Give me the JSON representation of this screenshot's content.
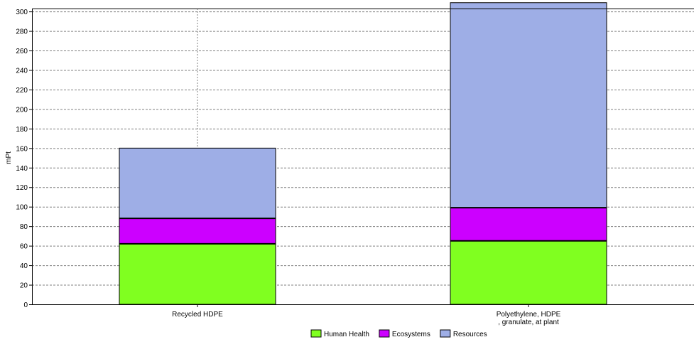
{
  "chart_data": {
    "type": "bar",
    "stacked": true,
    "categories": [
      "Recycled HDPE",
      "Polyethylene, HDPE\n, granulate, at plant"
    ],
    "series": [
      {
        "name": "Human Health",
        "values": [
          62,
          65
        ],
        "color": "#80ff20"
      },
      {
        "name": "Ecosystems",
        "values": [
          26,
          34
        ],
        "color": "#cc00ff"
      },
      {
        "name": "Resources",
        "values": [
          72,
          210
        ],
        "color": "#9eaee6"
      }
    ],
    "ylabel": "mPt",
    "ylim": [
      0,
      300
    ],
    "yticks": [
      0,
      20,
      40,
      60,
      80,
      100,
      120,
      140,
      160,
      180,
      200,
      220,
      240,
      260,
      280,
      300
    ],
    "grid": true,
    "legend": "bottom"
  }
}
